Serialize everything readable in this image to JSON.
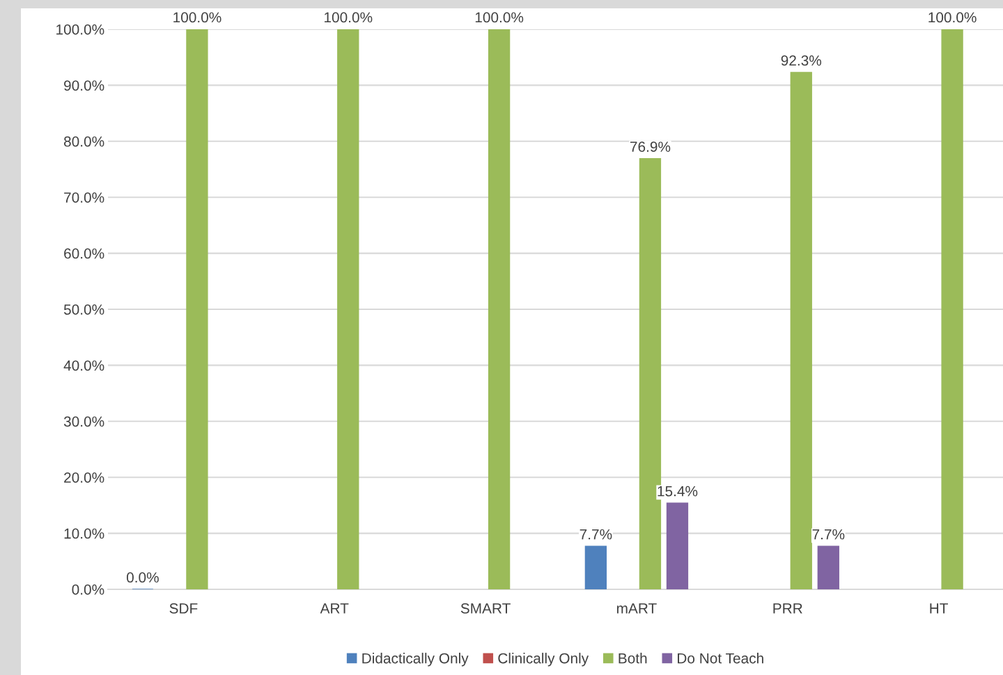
{
  "chart_data": {
    "type": "bar",
    "categories": [
      "SDF",
      "ART",
      "SMART",
      "mART",
      "PRR",
      "HT"
    ],
    "series": [
      {
        "name": "Didactically Only",
        "color": "#4f81bd",
        "values": [
          0,
          null,
          null,
          7.7,
          null,
          null
        ],
        "value_labels": [
          "0.0%",
          null,
          null,
          "7.7%",
          null,
          null
        ]
      },
      {
        "name": "Clinically Only",
        "color": "#c0504d",
        "values": [
          null,
          null,
          null,
          null,
          null,
          null
        ],
        "value_labels": [
          null,
          null,
          null,
          null,
          null,
          null
        ]
      },
      {
        "name": "Both",
        "color": "#9bbb59",
        "values": [
          100,
          100,
          100,
          76.9,
          92.3,
          100
        ],
        "value_labels": [
          "100.0%",
          "100.0%",
          "100.0%",
          "76.9%",
          "92.3%",
          "100.0%"
        ]
      },
      {
        "name": "Do Not Teach",
        "color": "#8064a2",
        "values": [
          null,
          null,
          null,
          15.4,
          7.7,
          null
        ],
        "value_labels": [
          null,
          null,
          null,
          "15.4%",
          "7.7%",
          null
        ]
      }
    ],
    "ylim": [
      0,
      100
    ],
    "yticks": [
      {
        "value": 0,
        "label": "0.0%"
      },
      {
        "value": 10,
        "label": "10.0%"
      },
      {
        "value": 20,
        "label": "20.0%"
      },
      {
        "value": 30,
        "label": "30.0%"
      },
      {
        "value": 40,
        "label": "40.0%"
      },
      {
        "value": 50,
        "label": "50.0%"
      },
      {
        "value": 60,
        "label": "60.0%"
      },
      {
        "value": 70,
        "label": "70.0%"
      },
      {
        "value": 80,
        "label": "80.0%"
      },
      {
        "value": 90,
        "label": "90.0%"
      },
      {
        "value": 100,
        "label": "100.0%"
      }
    ],
    "grid": "y",
    "legend": "bottom"
  }
}
